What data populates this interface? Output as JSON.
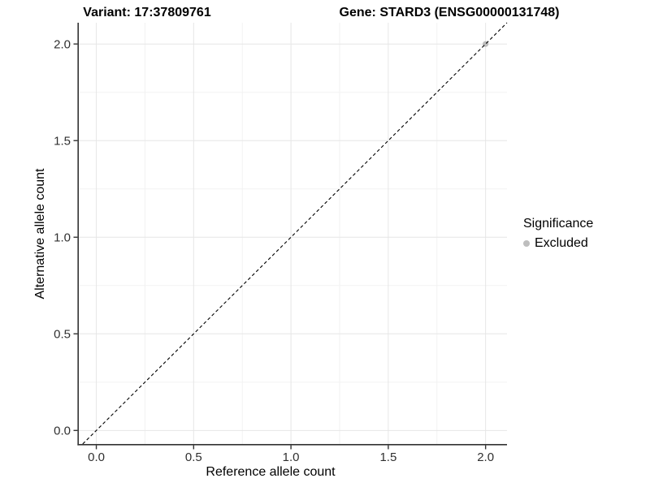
{
  "chart_data": {
    "type": "scatter",
    "title_left": "Variant: 17:37809761",
    "title_right": "Gene: STARD3 (ENSG00000131748)",
    "xlabel": "Reference allele count",
    "ylabel": "Alternative allele count",
    "xlim": [
      -0.09,
      2.11
    ],
    "ylim": [
      -0.07,
      2.11
    ],
    "x_ticks": [
      0.0,
      0.5,
      1.0,
      1.5,
      2.0
    ],
    "y_ticks": [
      0.0,
      0.5,
      1.0,
      1.5,
      2.0
    ],
    "grid": "major and minor, minor at 0.25 steps",
    "reference_line": {
      "type": "identity",
      "slope": 1,
      "intercept": 0,
      "style": "dashed",
      "color": "#000000"
    },
    "series": [
      {
        "name": "Excluded",
        "color": "#bebebe",
        "points": [
          [
            2.0,
            2.0
          ]
        ]
      }
    ],
    "legend": {
      "title": "Significance",
      "position": "right",
      "items": [
        {
          "label": "Excluded",
          "color": "#bebebe"
        }
      ]
    }
  },
  "colors": {
    "background": "#ffffff",
    "grid_major": "#e6e6e6",
    "grid_minor": "#f2f2f2",
    "axis_line": "#333333",
    "tick_label": "#303030",
    "point_excluded": "#bebebe"
  }
}
